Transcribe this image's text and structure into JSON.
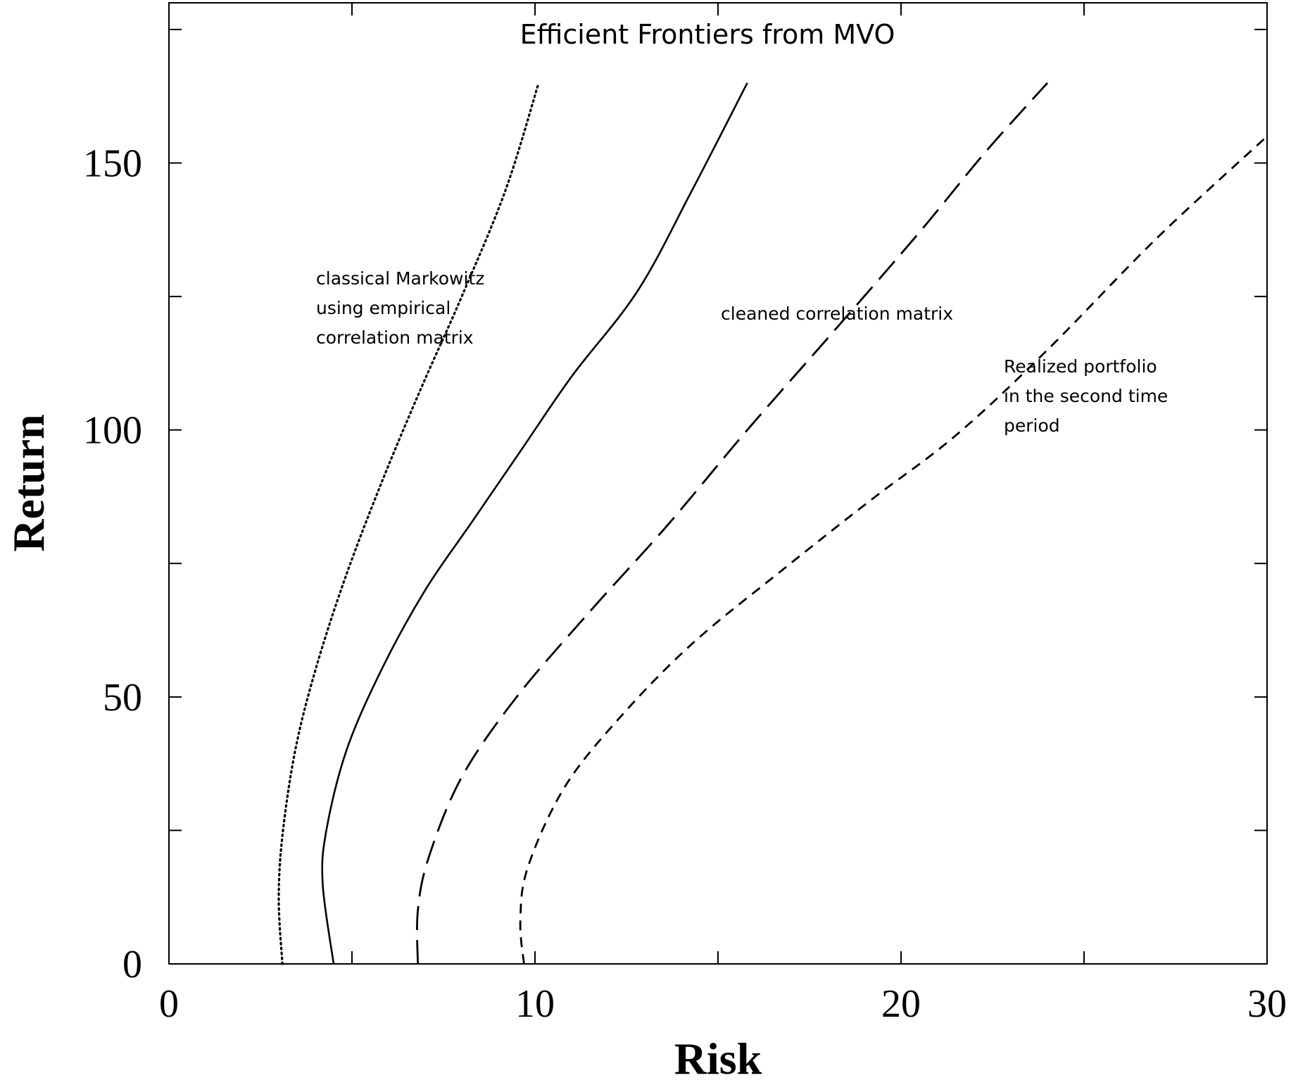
{
  "chart_data": {
    "type": "line",
    "title": "Efficient Frontiers from MVO",
    "xlabel": "Risk",
    "ylabel": "Return",
    "xlim": [
      0,
      30
    ],
    "ylim": [
      0,
      180
    ],
    "x_ticks": [
      0,
      10,
      20,
      30
    ],
    "y_ticks": [
      0,
      50,
      100,
      150
    ],
    "grid": false,
    "legend": "none",
    "series": [
      {
        "line_style": "dotted",
        "points": [
          [
            3.1,
            0
          ],
          [
            3.0,
            12
          ],
          [
            3.1,
            24
          ],
          [
            3.45,
            40
          ],
          [
            4.0,
            55
          ],
          [
            4.8,
            72
          ],
          [
            5.8,
            90
          ],
          [
            6.9,
            108
          ],
          [
            8.0,
            125
          ],
          [
            9.2,
            145
          ],
          [
            10.1,
            165
          ]
        ]
      },
      {
        "line_style": "solid",
        "points": [
          [
            4.5,
            0
          ],
          [
            4.2,
            15
          ],
          [
            4.3,
            25
          ],
          [
            4.85,
            40
          ],
          [
            5.8,
            55
          ],
          [
            7.0,
            70
          ],
          [
            8.3,
            83
          ],
          [
            9.6,
            96
          ],
          [
            11.0,
            110
          ],
          [
            12.8,
            126
          ],
          [
            14.3,
            145
          ],
          [
            15.8,
            165
          ]
        ]
      },
      {
        "line_style": "long-dashed",
        "points": [
          [
            6.8,
            0
          ],
          [
            6.8,
            10
          ],
          [
            7.1,
            20
          ],
          [
            8.0,
            35
          ],
          [
            9.5,
            50
          ],
          [
            11.5,
            66
          ],
          [
            13.6,
            82
          ],
          [
            15.8,
            100
          ],
          [
            18.1,
            118
          ],
          [
            20.5,
            137
          ],
          [
            22.3,
            152
          ],
          [
            24.0,
            165
          ]
        ]
      },
      {
        "line_style": "short-dashed",
        "points": [
          [
            9.7,
            0
          ],
          [
            9.6,
            8
          ],
          [
            9.8,
            18
          ],
          [
            10.8,
            33
          ],
          [
            12.3,
            46
          ],
          [
            14.3,
            60
          ],
          [
            16.8,
            74
          ],
          [
            19.2,
            87
          ],
          [
            21.5,
            99
          ],
          [
            24.0,
            115
          ],
          [
            27.0,
            136
          ],
          [
            30.0,
            155
          ]
        ]
      }
    ],
    "annotations": [
      {
        "lines": [
          "classical Markowitz",
          "using empirical",
          "correlation matrix"
        ]
      },
      {
        "lines": [
          "cleaned correlation matrix"
        ]
      },
      {
        "lines": [
          "Realized portfolio",
          "in the second time",
          "period"
        ]
      }
    ]
  }
}
